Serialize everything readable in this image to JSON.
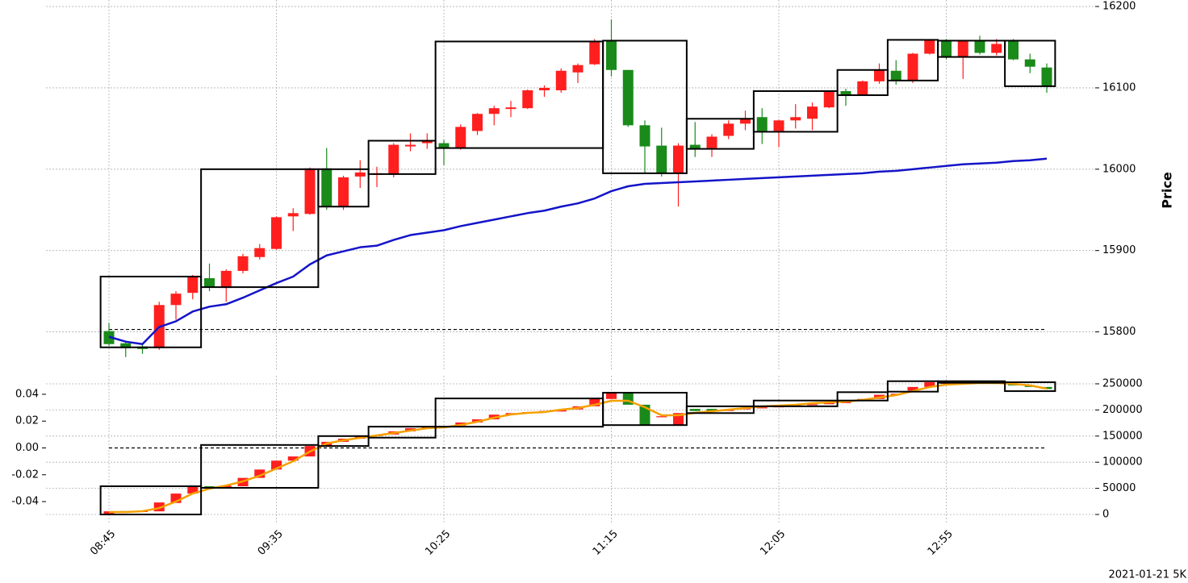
{
  "chart_data": [
    {
      "type": "candlestick",
      "ylabel": "Price",
      "categories": [
        "08:45",
        null,
        null,
        null,
        null,
        null,
        null,
        null,
        null,
        null,
        "09:35",
        null,
        null,
        null,
        null,
        null,
        null,
        null,
        null,
        null,
        "10:25",
        null,
        null,
        null,
        null,
        null,
        null,
        null,
        null,
        null,
        "11:15",
        null,
        null,
        null,
        null,
        null,
        null,
        null,
        null,
        null,
        "12:05",
        null,
        null,
        null,
        null,
        null,
        null,
        null,
        null,
        null,
        "12:55",
        null,
        null,
        null,
        null,
        null,
        null
      ],
      "open": [
        15801,
        15786,
        15782,
        15780,
        15833,
        15848,
        15866,
        15854,
        15875,
        15892,
        15902,
        15942,
        15945,
        16001,
        15954,
        15991,
        15993,
        15993,
        16028,
        16032,
        16032,
        16026,
        16047,
        16068,
        16074,
        16075,
        16097,
        16097,
        16119,
        16129,
        16158,
        16122,
        16054,
        16029,
        15995,
        16030,
        16026,
        16041,
        16056,
        16064,
        16047,
        16060,
        16062,
        16076,
        16096,
        16092,
        16108,
        16121,
        16109,
        16142,
        16158,
        16138,
        16158,
        16143,
        16158,
        16135,
        16125
      ],
      "high": [
        15811,
        15788,
        15784,
        15837,
        15850,
        15870,
        15884,
        15877,
        15896,
        15908,
        15942,
        15952,
        16002,
        16026,
        15992,
        16011,
        16003,
        16032,
        16044,
        16044,
        16036,
        16055,
        16069,
        16078,
        16084,
        16098,
        16103,
        16124,
        16130,
        16160,
        16184,
        16122,
        16060,
        16051,
        16032,
        16058,
        16043,
        16060,
        16072,
        16075,
        16061,
        16080,
        16082,
        16097,
        16099,
        16109,
        16130,
        16134,
        16143,
        16160,
        16160,
        16159,
        16164,
        16160,
        16160,
        16142,
        16130
      ],
      "low": [
        15783,
        15769,
        15773,
        15778,
        15815,
        15840,
        15850,
        15837,
        15872,
        15889,
        15901,
        15924,
        15944,
        15950,
        15950,
        15977,
        15978,
        15990,
        16022,
        16025,
        16005,
        16024,
        16042,
        16054,
        16064,
        16074,
        16089,
        16094,
        16106,
        16128,
        16114,
        16052,
        15995,
        15991,
        15954,
        16015,
        16015,
        16037,
        16048,
        16031,
        16027,
        16050,
        16048,
        16075,
        16078,
        16090,
        16105,
        16104,
        16106,
        16141,
        16135,
        16111,
        16141,
        16140,
        16134,
        16118,
        16094
      ],
      "close": [
        15785,
        15780,
        15779,
        15833,
        15847,
        15868,
        15855,
        15875,
        15893,
        15903,
        15941,
        15946,
        16001,
        15954,
        15990,
        15996,
        15995,
        16030,
        16030,
        16035,
        16026,
        16052,
        16068,
        16075,
        16076,
        16097,
        16100,
        16121,
        16128,
        16156,
        16122,
        16054,
        16028,
        15995,
        16029,
        16025,
        16040,
        16056,
        16062,
        16047,
        16060,
        16064,
        16077,
        16096,
        16091,
        16108,
        16122,
        16109,
        16142,
        16159,
        16138,
        16158,
        16143,
        16154,
        16135,
        16126,
        16102
      ],
      "ma": [
        15794,
        15788,
        15785,
        15806,
        15813,
        15825,
        15831,
        15834,
        15842,
        15851,
        15860,
        15868,
        15883,
        15894,
        15899,
        15904,
        15906,
        15913,
        15919,
        15922,
        15925,
        15930,
        15934,
        15938,
        15942,
        15946,
        15949,
        15954,
        15958,
        15964,
        15973,
        15979,
        15982,
        15983,
        15984,
        15985,
        15986,
        15987,
        15988,
        15989,
        15990,
        15991,
        15992,
        15993,
        15994,
        15995,
        15997,
        15998,
        16000,
        16002,
        16004,
        16006,
        16007,
        16008,
        16010,
        16011,
        16013
      ],
      "ma_color": "#1414c8",
      "reference_line": 15803,
      "boxes": [
        {
          "start": 0,
          "end": 5,
          "low": 15781,
          "high": 15868
        },
        {
          "start": 6,
          "end": 12,
          "low": 15855,
          "high": 16000
        },
        {
          "start": 13,
          "end": 15,
          "low": 15954,
          "high": 16000
        },
        {
          "start": 16,
          "end": 19,
          "low": 15994,
          "high": 16035
        },
        {
          "start": 20,
          "end": 29,
          "low": 16026,
          "high": 16157
        },
        {
          "start": 30,
          "end": 34,
          "low": 15995,
          "high": 16158
        },
        {
          "start": 35,
          "end": 38,
          "low": 16025,
          "high": 16062
        },
        {
          "start": 39,
          "end": 43,
          "low": 16046,
          "high": 16096
        },
        {
          "start": 44,
          "end": 46,
          "low": 16091,
          "high": 16122
        },
        {
          "start": 47,
          "end": 49,
          "low": 16109,
          "high": 16159
        },
        {
          "start": 50,
          "end": 53,
          "low": 16138,
          "high": 16158
        },
        {
          "start": 54,
          "end": 56,
          "low": 16102,
          "high": 16158
        }
      ],
      "up_color": "#ff1f1f",
      "down_color": "#1a8a1a",
      "ylim": [
        15752,
        16208
      ],
      "yticks": [
        15800,
        15900,
        16000,
        16100,
        16200
      ],
      "grid": true
    },
    {
      "type": "candlestick",
      "open": [
        0,
        6500,
        5500,
        6000,
        22000,
        40000,
        54000,
        52000,
        54000,
        70000,
        86000,
        103000,
        111000,
        131000,
        139000,
        145000,
        150000,
        153000,
        159000,
        165000,
        167000,
        170000,
        176000,
        182000,
        191000,
        194000,
        196000,
        197000,
        201000,
        207000,
        221000,
        232000,
        210000,
        186000,
        171000,
        202000,
        202000,
        198000,
        201000,
        203000,
        205000,
        207000,
        209000,
        211000,
        213000,
        217000,
        221000,
        229000,
        237000,
        244000,
        250000,
        251000,
        252000,
        251000,
        250000,
        247000,
        244000
      ],
      "close": [
        6000,
        5500,
        6500,
        23000,
        40000,
        55000,
        50000,
        55000,
        70000,
        86000,
        103000,
        111000,
        131000,
        139000,
        145000,
        150000,
        152000,
        159000,
        165000,
        167000,
        169000,
        176000,
        182000,
        191000,
        194000,
        196000,
        198000,
        201000,
        207000,
        221000,
        232000,
        210000,
        171000,
        188000,
        194000,
        198000,
        198000,
        201000,
        203000,
        205000,
        207000,
        209000,
        211000,
        213000,
        215000,
        221000,
        229000,
        231000,
        244000,
        253000,
        252000,
        253000,
        251000,
        252000,
        247000,
        244000,
        240000
      ],
      "line": [
        4600,
        4600,
        6200,
        12300,
        24700,
        40100,
        49400,
        55500,
        63300,
        74100,
        88000,
        101800,
        120400,
        135800,
        142000,
        146600,
        151200,
        155800,
        160500,
        165100,
        166600,
        171300,
        177400,
        185200,
        191300,
        194400,
        196000,
        200600,
        203700,
        209800,
        217600,
        217600,
        205200,
        189800,
        189800,
        194400,
        197500,
        200600,
        203700,
        206800,
        208300,
        209800,
        212900,
        214500,
        216000,
        219100,
        223700,
        228400,
        236100,
        243800,
        248400,
        250000,
        251500,
        251500,
        250000,
        246900,
        240700
      ],
      "line_color": "#f5a000",
      "reference_line": 0,
      "boxes": [
        {
          "start": 0,
          "end": 5,
          "low": 0,
          "high": 54000
        },
        {
          "start": 6,
          "end": 12,
          "low": 51000,
          "high": 133000
        },
        {
          "start": 13,
          "end": 15,
          "low": 131000,
          "high": 150000
        },
        {
          "start": 16,
          "end": 19,
          "low": 147000,
          "high": 168000
        },
        {
          "start": 20,
          "end": 29,
          "low": 168000,
          "high": 222000
        },
        {
          "start": 30,
          "end": 34,
          "low": 171000,
          "high": 233000
        },
        {
          "start": 35,
          "end": 38,
          "low": 194000,
          "high": 207000
        },
        {
          "start": 39,
          "end": 43,
          "low": 207000,
          "high": 218000
        },
        {
          "start": 44,
          "end": 46,
          "low": 218000,
          "high": 234000
        },
        {
          "start": 47,
          "end": 49,
          "low": 235000,
          "high": 255000
        },
        {
          "start": 50,
          "end": 53,
          "low": 252000,
          "high": 255000
        },
        {
          "start": 54,
          "end": 56,
          "low": 236000,
          "high": 253000
        }
      ],
      "up_color": "#ff1f1f",
      "down_color": "#1a8a1a",
      "ylim": [
        -0.0556,
        0.0538
      ],
      "yticks": [
        -0.04,
        -0.02,
        {
          "value": 0,
          "label": "0.00"
        },
        0.02,
        0.04
      ],
      "y2lim": [
        -15400,
        265400
      ],
      "y2ticks": [
        0,
        50000,
        100000,
        150000,
        200000,
        250000
      ],
      "grid": true
    }
  ],
  "footer": "2021-01-21 5K"
}
